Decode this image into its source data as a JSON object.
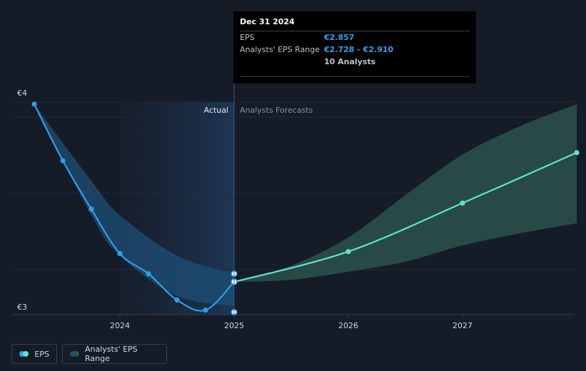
{
  "chart_data": {
    "type": "line",
    "y_axis": {
      "top_label": "€4",
      "bottom_label": "€3",
      "ylim": [
        3,
        4
      ]
    },
    "x_axis": {
      "tick_labels": [
        "2024",
        "2025",
        "2026",
        "2027"
      ]
    },
    "divider": {
      "actual_label": "Actual",
      "forecast_label": "Analysts Forecasts",
      "x": 2025.0
    },
    "series": [
      {
        "name": "EPS",
        "kind": "actual",
        "color": "#2e9fe6",
        "points": [
          {
            "x": 2023.25,
            "y": 4.0
          },
          {
            "x": 2023.5,
            "y": 3.72
          },
          {
            "x": 2023.75,
            "y": 3.48
          },
          {
            "x": 2024.0,
            "y": 3.26
          },
          {
            "x": 2024.25,
            "y": 3.16
          },
          {
            "x": 2024.5,
            "y": 3.03
          },
          {
            "x": 2024.75,
            "y": 2.98
          },
          {
            "x": 2025.0,
            "y": 3.12
          }
        ]
      },
      {
        "name": "EPS",
        "kind": "forecast",
        "color": "#5fe3cf",
        "points": [
          {
            "x": 2025.0,
            "y": 3.12
          },
          {
            "x": 2026.0,
            "y": 3.27
          },
          {
            "x": 2027.0,
            "y": 3.51
          },
          {
            "x": 2028.0,
            "y": 3.76
          }
        ]
      }
    ],
    "actual_range": {
      "color": "#1e4f78",
      "upper": [
        {
          "x": 2023.25,
          "y": 4.0
        },
        {
          "x": 2023.75,
          "y": 3.62
        },
        {
          "x": 2024.0,
          "y": 3.45
        },
        {
          "x": 2024.5,
          "y": 3.25
        },
        {
          "x": 2025.0,
          "y": 3.16
        }
      ],
      "lower": [
        {
          "x": 2023.25,
          "y": 4.0
        },
        {
          "x": 2023.75,
          "y": 3.45
        },
        {
          "x": 2024.0,
          "y": 3.25
        },
        {
          "x": 2024.5,
          "y": 3.05
        },
        {
          "x": 2025.0,
          "y": 3.0
        }
      ]
    },
    "forecast_range": {
      "color": "#2c5650",
      "upper": [
        {
          "x": 2025.0,
          "y": 3.12
        },
        {
          "x": 2025.5,
          "y": 3.2
        },
        {
          "x": 2026.0,
          "y": 3.34
        },
        {
          "x": 2026.5,
          "y": 3.55
        },
        {
          "x": 2027.0,
          "y": 3.75
        },
        {
          "x": 2027.5,
          "y": 3.89
        },
        {
          "x": 2028.0,
          "y": 4.0
        }
      ],
      "lower": [
        {
          "x": 2025.0,
          "y": 3.12
        },
        {
          "x": 2025.5,
          "y": 3.13
        },
        {
          "x": 2026.0,
          "y": 3.17
        },
        {
          "x": 2026.5,
          "y": 3.22
        },
        {
          "x": 2027.0,
          "y": 3.3
        },
        {
          "x": 2027.5,
          "y": 3.36
        },
        {
          "x": 2028.0,
          "y": 3.41
        }
      ]
    },
    "range_markers": [
      {
        "x": 2025.0,
        "y": 3.16
      },
      {
        "x": 2025.0,
        "y": 2.97
      }
    ]
  },
  "tooltip": {
    "date": "Dec 31 2024",
    "eps_label": "EPS",
    "eps_value": "€2.857",
    "range_label": "Analysts' EPS Range",
    "range_value": "€2.728 - €2.910",
    "analysts": "10 Analysts"
  },
  "legend": {
    "eps_label": "EPS",
    "range_label": "Analysts' EPS Range"
  },
  "colors": {
    "background": "#151b27",
    "actual_shade": "#1a2a3d",
    "eps_actual": "#2e9fe6",
    "eps_forecast": "#5fe3cf",
    "grid": "#2a303c"
  }
}
